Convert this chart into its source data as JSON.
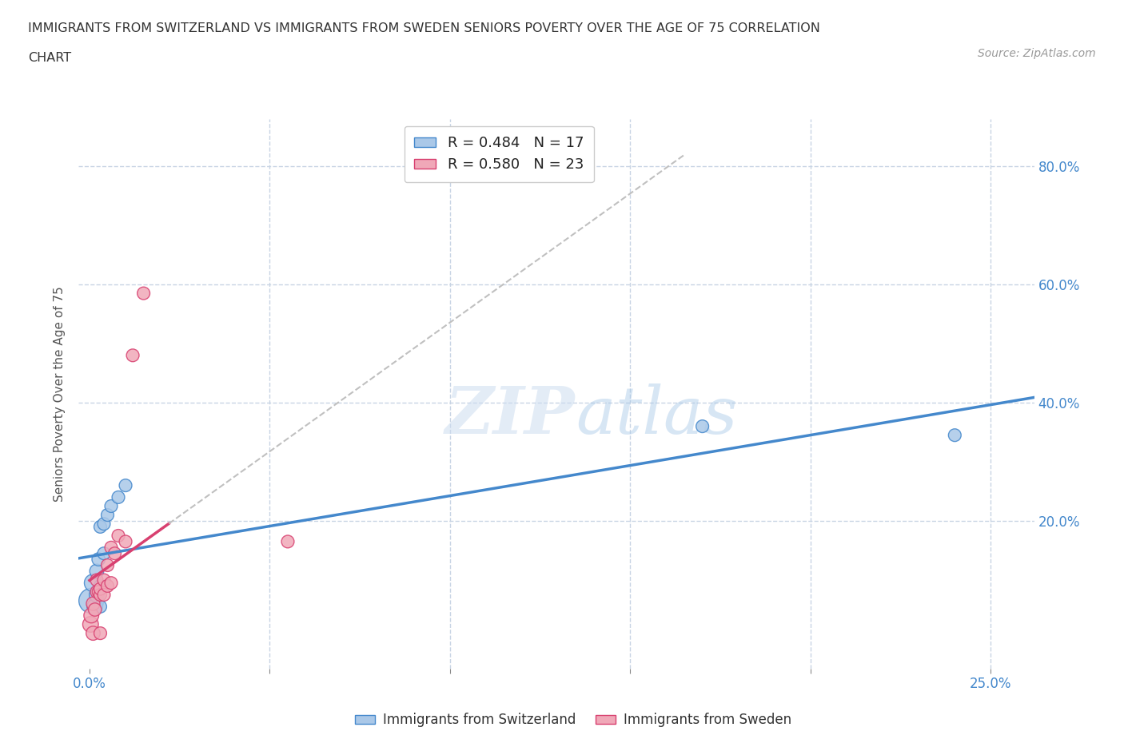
{
  "title_line1": "IMMIGRANTS FROM SWITZERLAND VS IMMIGRANTS FROM SWEDEN SENIORS POVERTY OVER THE AGE OF 75 CORRELATION",
  "title_line2": "CHART",
  "source": "Source: ZipAtlas.com",
  "ylabel": "Seniors Poverty Over the Age of 75",
  "xlim": [
    -0.003,
    0.262
  ],
  "ylim": [
    -0.05,
    0.88
  ],
  "watermark_zip": "ZIP",
  "watermark_atlas": "atlas",
  "color_switzerland": "#aac8e8",
  "color_sweden": "#f0a8b8",
  "line_color_switzerland": "#4488cc",
  "line_color_sweden": "#d84070",
  "grid_color": "#c8d4e4",
  "background_color": "#ffffff",
  "switzerland_x": [
    0.0005,
    0.001,
    0.0015,
    0.002,
    0.002,
    0.0025,
    0.003,
    0.003,
    0.003,
    0.004,
    0.004,
    0.005,
    0.006,
    0.008,
    0.01,
    0.17,
    0.24
  ],
  "switzerland_y": [
    0.065,
    0.095,
    0.055,
    0.075,
    0.115,
    0.135,
    0.055,
    0.09,
    0.19,
    0.145,
    0.195,
    0.21,
    0.225,
    0.24,
    0.26,
    0.36,
    0.345
  ],
  "switzerland_sizes": [
    500,
    250,
    200,
    180,
    160,
    140,
    130,
    130,
    130,
    130,
    130,
    130,
    130,
    130,
    130,
    130,
    130
  ],
  "sweden_x": [
    0.0003,
    0.0005,
    0.001,
    0.001,
    0.0015,
    0.002,
    0.002,
    0.0025,
    0.003,
    0.003,
    0.003,
    0.004,
    0.004,
    0.005,
    0.005,
    0.006,
    0.006,
    0.007,
    0.008,
    0.01,
    0.012,
    0.015,
    0.055
  ],
  "sweden_y": [
    0.025,
    0.04,
    0.01,
    0.06,
    0.05,
    0.08,
    0.1,
    0.08,
    0.01,
    0.075,
    0.085,
    0.075,
    0.1,
    0.09,
    0.125,
    0.095,
    0.155,
    0.145,
    0.175,
    0.165,
    0.48,
    0.585,
    0.165
  ],
  "sweden_sizes": [
    200,
    180,
    160,
    150,
    140,
    130,
    130,
    130,
    130,
    130,
    130,
    130,
    130,
    130,
    130,
    130,
    130,
    130,
    130,
    130,
    130,
    130,
    130
  ],
  "legend_text1": "R = 0.484   N = 17",
  "legend_text2": "R = 0.580   N = 23"
}
